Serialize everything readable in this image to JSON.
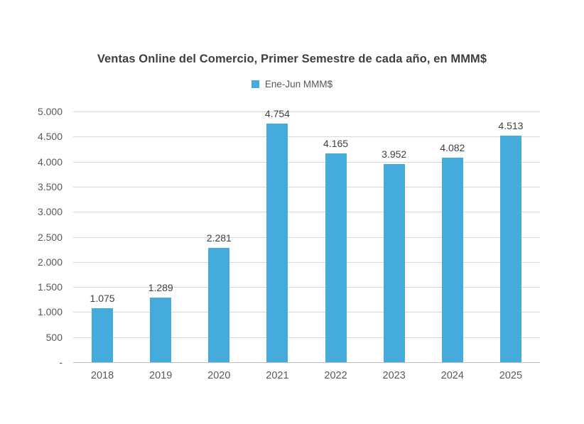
{
  "legend": {
    "label": "Ene-Jun MMM$"
  },
  "colors": {
    "bar": "#45AADC",
    "title": "#3F3F3F",
    "data_label": "#404040",
    "tick_label": "#595959",
    "gridline": "#D9D9D9",
    "axis_line": "#BFBFBF",
    "background": "#FFFFFF"
  },
  "chart_data": {
    "type": "bar",
    "title": "Ventas Online del Comercio, Primer Semestre de cada año, en MMM$",
    "categories": [
      "2018",
      "2019",
      "2020",
      "2021",
      "2022",
      "2023",
      "2024",
      "2025"
    ],
    "values": [
      1075,
      1289,
      2281,
      4754,
      4165,
      3952,
      4082,
      4513
    ],
    "value_labels": [
      "1.075",
      "1.289",
      "2.281",
      "4.754",
      "4.165",
      "3.952",
      "4.082",
      "4.513"
    ],
    "series_name": "Ene-Jun MMM$",
    "xlabel": "",
    "ylabel": "",
    "ylim": [
      0,
      5000
    ],
    "y_tick_step": 500,
    "y_tick_labels_top_to_bottom": [
      "5.000",
      "4.500",
      "4.000",
      "3.500",
      "3.000",
      "2.500",
      "2.000",
      "1.500",
      "1.000",
      "500",
      "-"
    ],
    "grid": true,
    "legend_position": "top-center"
  }
}
